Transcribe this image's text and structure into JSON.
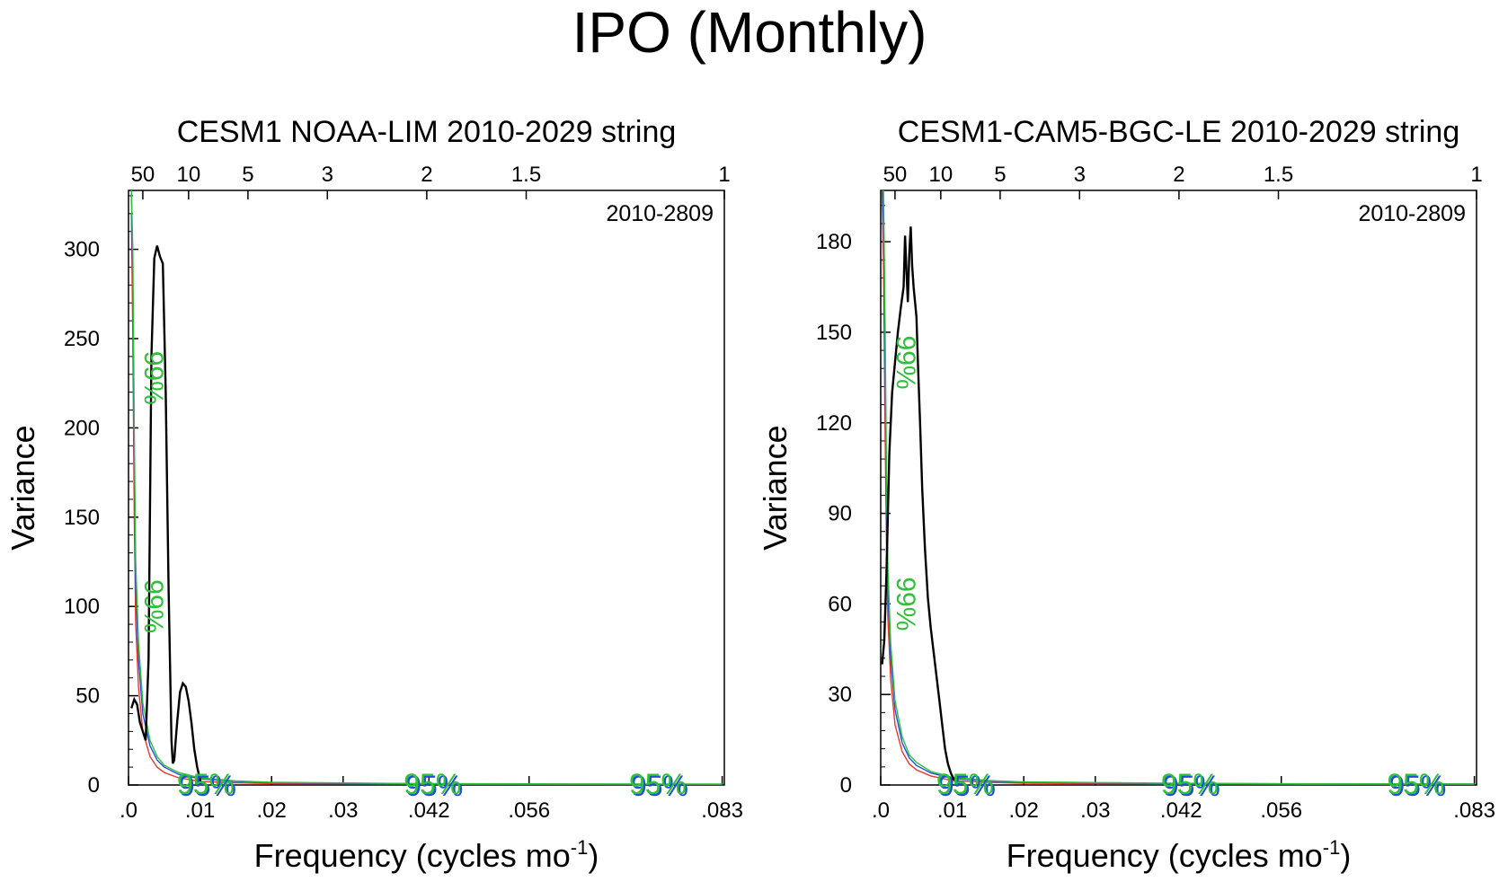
{
  "figure": {
    "title": "IPO (Monthly)"
  },
  "chart_data": [
    {
      "type": "line",
      "title": "CESM1 NOAA-LIM 2010-2029 string",
      "annotation": "2010-2809",
      "xlabel_main": "Frequency (cycles mo",
      "xlabel_sup": "-1",
      "xlabel_close": ")",
      "ylabel": "Variance",
      "xlim": [
        0,
        0.0833
      ],
      "ylim": [
        0,
        333
      ],
      "x_ticks": [
        {
          "v": 0.0,
          "label": ".0"
        },
        {
          "v": 0.01,
          "label": ".01"
        },
        {
          "v": 0.02,
          "label": ".02"
        },
        {
          "v": 0.03,
          "label": ".03"
        },
        {
          "v": 0.042,
          "label": ".042"
        },
        {
          "v": 0.056,
          "label": ".056"
        },
        {
          "v": 0.083,
          "label": ".083"
        }
      ],
      "top_ticks": [
        {
          "v": 0.002,
          "label": "50"
        },
        {
          "v": 0.0084,
          "label": "10"
        },
        {
          "v": 0.0167,
          "label": "5"
        },
        {
          "v": 0.0278,
          "label": "3"
        },
        {
          "v": 0.0417,
          "label": "2"
        },
        {
          "v": 0.0556,
          "label": "1.5"
        },
        {
          "v": 0.0833,
          "label": "1"
        }
      ],
      "y_ticks": [
        {
          "v": 0,
          "label": "0"
        },
        {
          "v": 50,
          "label": "50"
        },
        {
          "v": 100,
          "label": "100"
        },
        {
          "v": 150,
          "label": "150"
        },
        {
          "v": 200,
          "label": "200"
        },
        {
          "v": 250,
          "label": "250"
        },
        {
          "v": 300,
          "label": "300"
        }
      ],
      "y_minor_step": 10,
      "sig_labels": [
        {
          "x": 0.0005,
          "y": 228,
          "label": "99%",
          "rotated": true
        },
        {
          "x": 0.0005,
          "y": 100,
          "label": "99%",
          "rotated": true
        },
        {
          "x": 0.0108,
          "y": 0,
          "label": "95%",
          "rotated": false
        },
        {
          "x": 0.0425,
          "y": 0,
          "label": "95%",
          "rotated": false
        },
        {
          "x": 0.074,
          "y": 0,
          "label": "95%",
          "rotated": false
        }
      ],
      "series": [
        {
          "name": "spectrum",
          "color": "#000000",
          "x": [
            0.0004,
            0.0008,
            0.0012,
            0.0016,
            0.002,
            0.0024,
            0.0028,
            0.0032,
            0.0036,
            0.004,
            0.0044,
            0.0048,
            0.0052,
            0.0056,
            0.006,
            0.0062,
            0.0064,
            0.0066,
            0.0068,
            0.0072,
            0.0076,
            0.008,
            0.0084,
            0.0088,
            0.0092,
            0.0096,
            0.01,
            0.0102
          ],
          "values": [
            43,
            48,
            45,
            35,
            30,
            25,
            70,
            240,
            295,
            302,
            296,
            292,
            220,
            110,
            25,
            12,
            14,
            25,
            35,
            52,
            57,
            55,
            47,
            35,
            20,
            10,
            3,
            0
          ]
        },
        {
          "name": "red",
          "color": "#e8382b",
          "x": [
            0.0004,
            0.0006,
            0.0008,
            0.001,
            0.0014,
            0.002,
            0.003,
            0.004,
            0.005,
            0.007,
            0.01,
            0.015,
            0.02,
            0.04,
            0.06,
            0.083
          ],
          "values": [
            320,
            250,
            150,
            90,
            55,
            30,
            16,
            10,
            7,
            4,
            2,
            1.2,
            0.8,
            0.4,
            0.3,
            0.25
          ]
        },
        {
          "name": "blue",
          "color": "#1f4fd8",
          "x": [
            0.0004,
            0.0006,
            0.0008,
            0.001,
            0.0014,
            0.002,
            0.003,
            0.004,
            0.005,
            0.007,
            0.01,
            0.015,
            0.02,
            0.04,
            0.06,
            0.083
          ],
          "values": [
            333,
            280,
            180,
            110,
            70,
            40,
            22,
            14,
            10,
            6,
            3.5,
            2,
            1.3,
            0.7,
            0.5,
            0.4
          ]
        },
        {
          "name": "green",
          "color": "#2fbf3a",
          "x": [
            0.0004,
            0.0006,
            0.0008,
            0.001,
            0.0014,
            0.002,
            0.003,
            0.004,
            0.005,
            0.007,
            0.01,
            0.015,
            0.02,
            0.04,
            0.06,
            0.083
          ],
          "values": [
            333,
            300,
            200,
            125,
            80,
            46,
            25,
            16,
            11,
            7,
            4,
            2.3,
            1.5,
            0.8,
            0.6,
            0.5
          ]
        }
      ]
    },
    {
      "type": "line",
      "title": "CESM1-CAM5-BGC-LE 2010-2029 string",
      "annotation": "2010-2809",
      "xlabel_main": "Frequency (cycles mo",
      "xlabel_sup": "-1",
      "xlabel_close": ")",
      "ylabel": "Variance",
      "xlim": [
        0,
        0.0833
      ],
      "ylim": [
        0,
        197
      ],
      "x_ticks": [
        {
          "v": 0.0,
          "label": ".0"
        },
        {
          "v": 0.01,
          "label": ".01"
        },
        {
          "v": 0.02,
          "label": ".02"
        },
        {
          "v": 0.03,
          "label": ".03"
        },
        {
          "v": 0.042,
          "label": ".042"
        },
        {
          "v": 0.056,
          "label": ".056"
        },
        {
          "v": 0.083,
          "label": ".083"
        }
      ],
      "top_ticks": [
        {
          "v": 0.002,
          "label": "50"
        },
        {
          "v": 0.0084,
          "label": "10"
        },
        {
          "v": 0.0167,
          "label": "5"
        },
        {
          "v": 0.0278,
          "label": "3"
        },
        {
          "v": 0.0417,
          "label": "2"
        },
        {
          "v": 0.0556,
          "label": "1.5"
        },
        {
          "v": 0.0833,
          "label": "1"
        }
      ],
      "y_ticks": [
        {
          "v": 0,
          "label": "0"
        },
        {
          "v": 30,
          "label": "30"
        },
        {
          "v": 60,
          "label": "60"
        },
        {
          "v": 90,
          "label": "90"
        },
        {
          "v": 120,
          "label": "120"
        },
        {
          "v": 150,
          "label": "150"
        },
        {
          "v": 180,
          "label": "180"
        }
      ],
      "y_minor_step": 6,
      "sig_labels": [
        {
          "x": 0.0005,
          "y": 140,
          "label": "99%",
          "rotated": true
        },
        {
          "x": 0.0005,
          "y": 60,
          "label": "99%",
          "rotated": true
        },
        {
          "x": 0.0118,
          "y": 0,
          "label": "95%",
          "rotated": false
        },
        {
          "x": 0.0432,
          "y": 0,
          "label": "95%",
          "rotated": false
        },
        {
          "x": 0.0748,
          "y": 0,
          "label": "95%",
          "rotated": false
        }
      ],
      "series": [
        {
          "name": "spectrum",
          "color": "#000000",
          "x": [
            0.0002,
            0.0005,
            0.0008,
            0.0012,
            0.0016,
            0.002,
            0.0024,
            0.0028,
            0.0032,
            0.0034,
            0.0036,
            0.0038,
            0.004,
            0.0042,
            0.0044,
            0.0046,
            0.0048,
            0.005,
            0.0052,
            0.0055,
            0.0058,
            0.0062,
            0.0066,
            0.007,
            0.0074,
            0.0078,
            0.0082,
            0.0086,
            0.009,
            0.0094,
            0.0098,
            0.0102,
            0.0106,
            0.011
          ],
          "values": [
            40,
            48,
            70,
            110,
            130,
            140,
            150,
            158,
            165,
            182,
            170,
            160,
            176,
            185,
            172,
            165,
            160,
            155,
            140,
            120,
            98,
            78,
            62,
            52,
            44,
            36,
            28,
            20,
            12,
            7,
            4,
            2,
            1,
            0
          ]
        },
        {
          "name": "red",
          "color": "#e8382b",
          "x": [
            0.0002,
            0.0004,
            0.0006,
            0.0008,
            0.001,
            0.0014,
            0.002,
            0.003,
            0.004,
            0.005,
            0.007,
            0.01,
            0.015,
            0.02,
            0.04,
            0.06,
            0.083
          ],
          "values": [
            197,
            170,
            120,
            80,
            55,
            35,
            20,
            11,
            7,
            5,
            3,
            1.5,
            0.9,
            0.6,
            0.3,
            0.2,
            0.15
          ]
        },
        {
          "name": "blue",
          "color": "#1f4fd8",
          "x": [
            0.0002,
            0.0004,
            0.0006,
            0.0008,
            0.001,
            0.0014,
            0.002,
            0.003,
            0.004,
            0.005,
            0.007,
            0.01,
            0.015,
            0.02,
            0.04,
            0.06,
            0.083
          ],
          "values": [
            197,
            185,
            140,
            95,
            65,
            42,
            25,
            14,
            9,
            6.5,
            4,
            2.2,
            1.3,
            0.9,
            0.5,
            0.35,
            0.3
          ]
        },
        {
          "name": "green",
          "color": "#2fbf3a",
          "x": [
            0.0002,
            0.0004,
            0.0006,
            0.0008,
            0.001,
            0.0014,
            0.002,
            0.003,
            0.004,
            0.005,
            0.007,
            0.01,
            0.015,
            0.02,
            0.04,
            0.06,
            0.083
          ],
          "values": [
            197,
            197,
            155,
            105,
            72,
            47,
            28,
            16,
            10,
            7.5,
            4.5,
            2.6,
            1.5,
            1.0,
            0.6,
            0.4,
            0.35
          ]
        }
      ]
    }
  ]
}
